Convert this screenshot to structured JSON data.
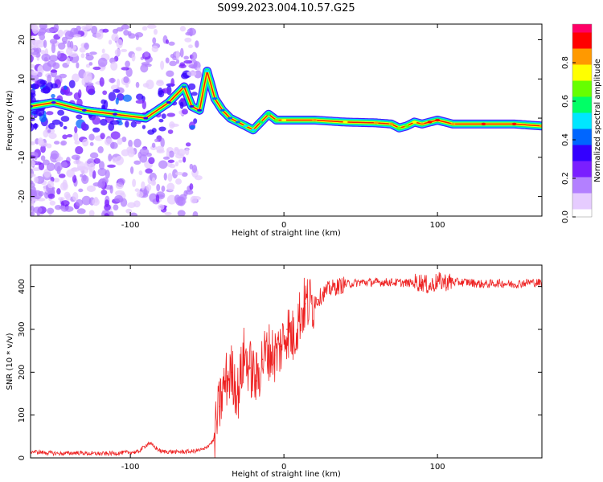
{
  "figure": {
    "title": "S099.2023.004.10.57.G25"
  },
  "chart_data": [
    {
      "type": "heatmap",
      "xlabel": "Height of straight line (km)",
      "ylabel": "Frequency (Hz)",
      "xlim": [
        -165,
        168
      ],
      "ylim": [
        -25,
        24
      ],
      "xticks": [
        -100,
        0,
        100
      ],
      "yticks": [
        -20,
        -10,
        0,
        10,
        20
      ],
      "colorbar": {
        "label": "Normalized spectral amplitude",
        "range": [
          0,
          1
        ],
        "ticks": [
          0.0,
          0.2,
          0.4,
          0.6,
          0.8
        ],
        "colors": [
          "#ffffff",
          "#e6ccff",
          "#b380ff",
          "#7a1fff",
          "#3300ff",
          "#0066ff",
          "#00e6ff",
          "#00ff66",
          "#66ff00",
          "#ffff00",
          "#ff9900",
          "#ff0000",
          "#ff0066"
        ]
      },
      "ridge": {
        "x": [
          -165,
          -150,
          -130,
          -110,
          -90,
          -75,
          -65,
          -60,
          -55,
          -50,
          -45,
          -40,
          -35,
          -30,
          -25,
          -20,
          -15,
          -10,
          -5,
          0,
          20,
          40,
          60,
          70,
          75,
          80,
          85,
          90,
          95,
          100,
          110,
          130,
          150,
          168
        ],
        "frequency": [
          3,
          4,
          2,
          1,
          0,
          4,
          8,
          3,
          2,
          12,
          5,
          2,
          0,
          -1,
          -2,
          -3,
          -1,
          1,
          -0.5,
          -0.5,
          -0.5,
          -1,
          -1.2,
          -1.5,
          -2.5,
          -2,
          -1,
          -1.5,
          -1,
          -0.5,
          -1.5,
          -1.5,
          -1.5,
          -2
        ],
        "amplitude": [
          0.3,
          0.3,
          0.3,
          0.3,
          0.3,
          0.35,
          0.45,
          0.35,
          0.35,
          0.5,
          0.4,
          0.4,
          0.4,
          0.45,
          0.5,
          0.5,
          0.55,
          0.6,
          0.7,
          0.75,
          0.8,
          0.75,
          0.8,
          0.85,
          0.7,
          0.7,
          0.75,
          0.8,
          0.9,
          0.9,
          0.85,
          0.9,
          0.9,
          0.85
        ]
      }
    },
    {
      "type": "line",
      "xlabel": "Height of straight line (km)",
      "ylabel": "SNR (10 * v/v)",
      "xlim": [
        -165,
        168
      ],
      "ylim": [
        0,
        450
      ],
      "xticks": [
        -100,
        0,
        100
      ],
      "yticks": [
        0,
        100,
        200,
        300,
        400
      ],
      "series": [
        {
          "color": "#ee2222",
          "x": [
            -165,
            -155,
            -145,
            -135,
            -125,
            -115,
            -105,
            -95,
            -88,
            -80,
            -70,
            -60,
            -52,
            -46,
            -42,
            -38,
            -34,
            -30,
            -26,
            -22,
            -18,
            -14,
            -10,
            -6,
            -2,
            2,
            6,
            10,
            14,
            18,
            22,
            26,
            30,
            40,
            50,
            60,
            70,
            80,
            90,
            95,
            100,
            110,
            120,
            130,
            140,
            150,
            160,
            168
          ],
          "values": [
            15,
            12,
            10,
            12,
            10,
            10,
            12,
            14,
            35,
            15,
            14,
            15,
            20,
            40,
            120,
            180,
            200,
            150,
            240,
            210,
            180,
            230,
            250,
            240,
            260,
            300,
            280,
            330,
            360,
            360,
            370,
            385,
            395,
            405,
            410,
            410,
            410,
            408,
            410,
            400,
            412,
            410,
            410,
            405,
            408,
            405,
            410,
            408
          ]
        }
      ]
    }
  ]
}
